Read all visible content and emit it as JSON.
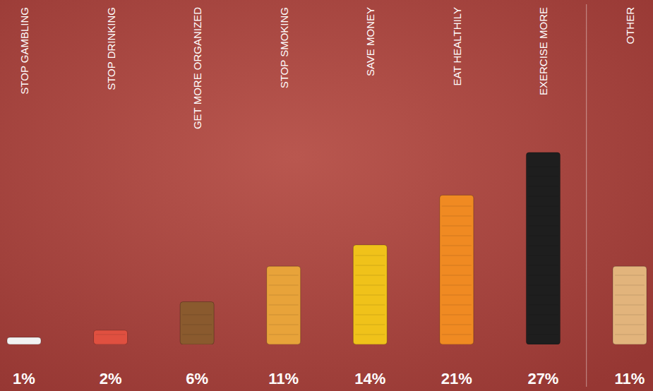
{
  "chart_data": {
    "type": "bar",
    "categories": [
      "STOP GAMBLING",
      "STOP DRINKING",
      "GET MORE ORGANIZED",
      "STOP SMOKING",
      "SAVE MONEY",
      "EAT HEALTHILY",
      "EXERCISE MORE",
      "OTHER"
    ],
    "values": [
      1,
      2,
      6,
      11,
      14,
      21,
      27,
      11
    ],
    "value_labels": [
      "1%",
      "2%",
      "6%",
      "11%",
      "14%",
      "21%",
      "27%",
      "11%"
    ],
    "colors": [
      "#f2f2f2",
      "#e05040",
      "#8a5a2e",
      "#e8a33a",
      "#f0c21a",
      "#f08a22",
      "#1e1e1e",
      "#e2b47c"
    ],
    "data_labels": true,
    "tick_labels": "x"
  }
}
